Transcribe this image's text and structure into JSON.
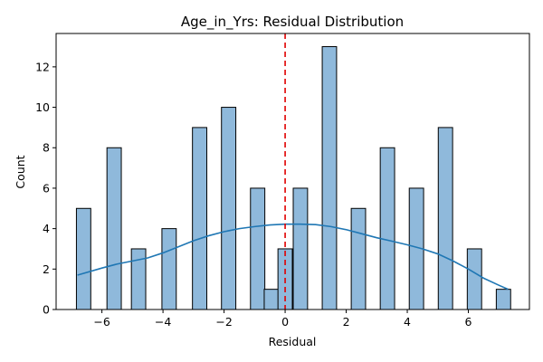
{
  "chart_data": {
    "type": "bar",
    "title": "Age_in_Yrs: Residual Distribution",
    "xlabel": "Residual",
    "ylabel": "Count",
    "xlim": [
      -7.5,
      8.0
    ],
    "ylim": [
      0,
      13.65
    ],
    "xticks": [
      -6,
      -4,
      -2,
      0,
      2,
      4,
      6
    ],
    "yticks": [
      0,
      2,
      4,
      6,
      8,
      10,
      12
    ],
    "grid": false,
    "bar_color": "#8fb9db",
    "edge_color": "#000000",
    "kde_color": "#1f77b4",
    "reference_line": {
      "x": 0,
      "color": "#e00000",
      "style": "dashed"
    },
    "bins": [
      {
        "x": -6.6,
        "count": 5
      },
      {
        "x": -5.6,
        "count": 8
      },
      {
        "x": -4.8,
        "count": 3
      },
      {
        "x": -3.8,
        "count": 4
      },
      {
        "x": -2.8,
        "count": 9
      },
      {
        "x": -1.85,
        "count": 10
      },
      {
        "x": -0.9,
        "count": 6
      },
      {
        "x": -0.45,
        "count": 1
      },
      {
        "x": 0.0,
        "count": 3
      },
      {
        "x": 0.5,
        "count": 6
      },
      {
        "x": 1.45,
        "count": 13
      },
      {
        "x": 2.4,
        "count": 5
      },
      {
        "x": 3.35,
        "count": 8
      },
      {
        "x": 4.3,
        "count": 6
      },
      {
        "x": 5.25,
        "count": 9
      },
      {
        "x": 6.2,
        "count": 3
      },
      {
        "x": 7.15,
        "count": 1
      }
    ],
    "bin_width": 0.47,
    "kde": {
      "x": [
        -6.8,
        -6.0,
        -5.5,
        -5.0,
        -4.5,
        -4.0,
        -3.5,
        -3.0,
        -2.5,
        -2.0,
        -1.5,
        -1.0,
        -0.5,
        0.0,
        0.5,
        1.0,
        1.5,
        2.0,
        2.5,
        3.0,
        3.5,
        4.0,
        4.5,
        5.0,
        5.5,
        6.0,
        6.5,
        7.0,
        7.3
      ],
      "y": [
        1.7,
        2.05,
        2.25,
        2.4,
        2.55,
        2.8,
        3.1,
        3.4,
        3.65,
        3.85,
        4.0,
        4.1,
        4.18,
        4.22,
        4.22,
        4.2,
        4.1,
        3.95,
        3.75,
        3.55,
        3.38,
        3.2,
        3.0,
        2.75,
        2.4,
        2.0,
        1.55,
        1.2,
        1.0
      ]
    }
  }
}
